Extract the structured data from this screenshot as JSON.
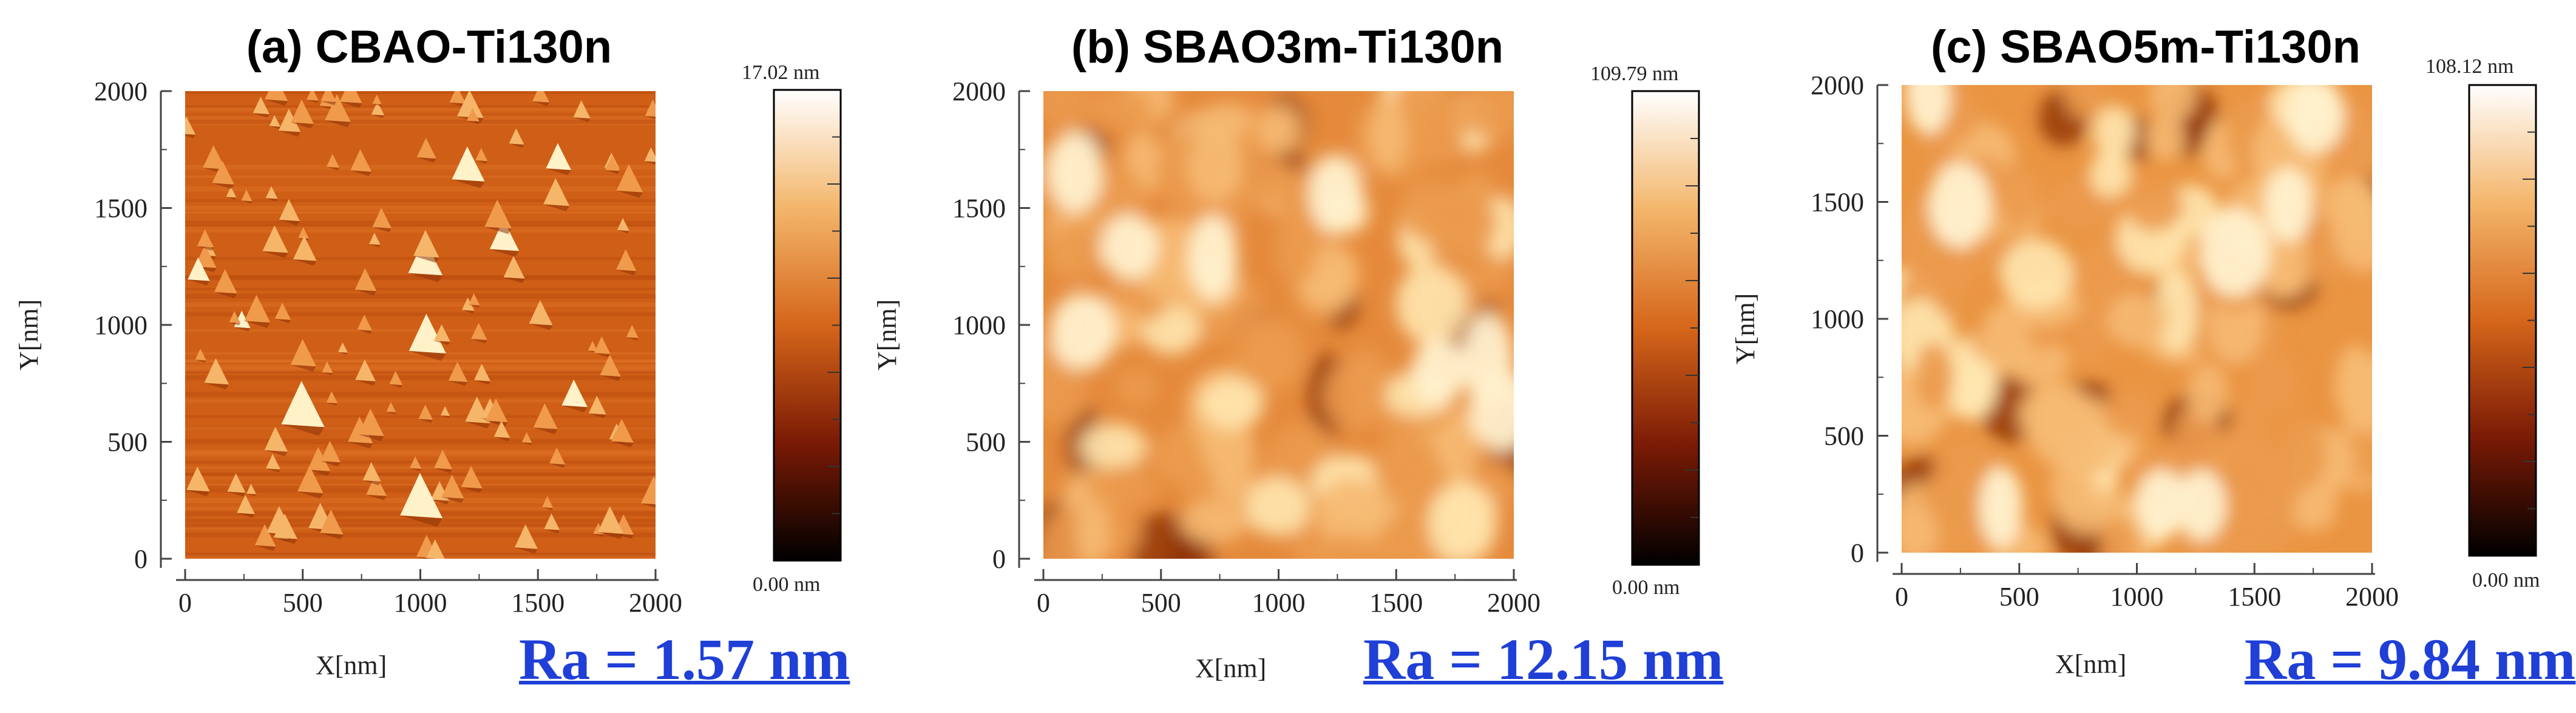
{
  "figure": {
    "panels": [
      {
        "title": "(a) CBAO-Ti130n",
        "x_axis_label": "X[nm]",
        "y_axis_label": "Y[nm]",
        "x_ticks": [
          "0",
          "500",
          "1000",
          "1500",
          "2000"
        ],
        "y_ticks": [
          "0",
          "500",
          "1000",
          "1500",
          "2000"
        ],
        "colorbar_max": "17.02 nm",
        "colorbar_min": "0.00 nm",
        "roughness": "Ra = 1.57 nm",
        "surface_style": "fine grains"
      },
      {
        "title": "(b) SBAO3m-Ti130n",
        "x_axis_label": "X[nm]",
        "y_axis_label": "Y[nm]",
        "x_ticks": [
          "0",
          "500",
          "1000",
          "1500",
          "2000"
        ],
        "y_ticks": [
          "0",
          "500",
          "1000",
          "1500",
          "2000"
        ],
        "colorbar_max": "109.79 nm",
        "colorbar_min": "0.00 nm",
        "roughness": "Ra = 12.15 nm",
        "surface_style": "coarse grains"
      },
      {
        "title": "(c) SBAO5m-Ti130n",
        "x_axis_label": "X[nm]",
        "y_axis_label": "Y[nm]",
        "x_ticks": [
          "0",
          "500",
          "1000",
          "1500",
          "2000"
        ],
        "y_ticks": [
          "0",
          "500",
          "1000",
          "1500",
          "2000"
        ],
        "colorbar_max": "108.12 nm",
        "colorbar_min": "0.00 nm",
        "roughness": "Ra = 9.84 nm",
        "surface_style": "coarse grains"
      }
    ],
    "colors": {
      "ra_text": "#1f3fd6",
      "afm_base": "#d9691e",
      "afm_dark": "#8a2e06",
      "afm_light": "#ffe7b0"
    }
  }
}
